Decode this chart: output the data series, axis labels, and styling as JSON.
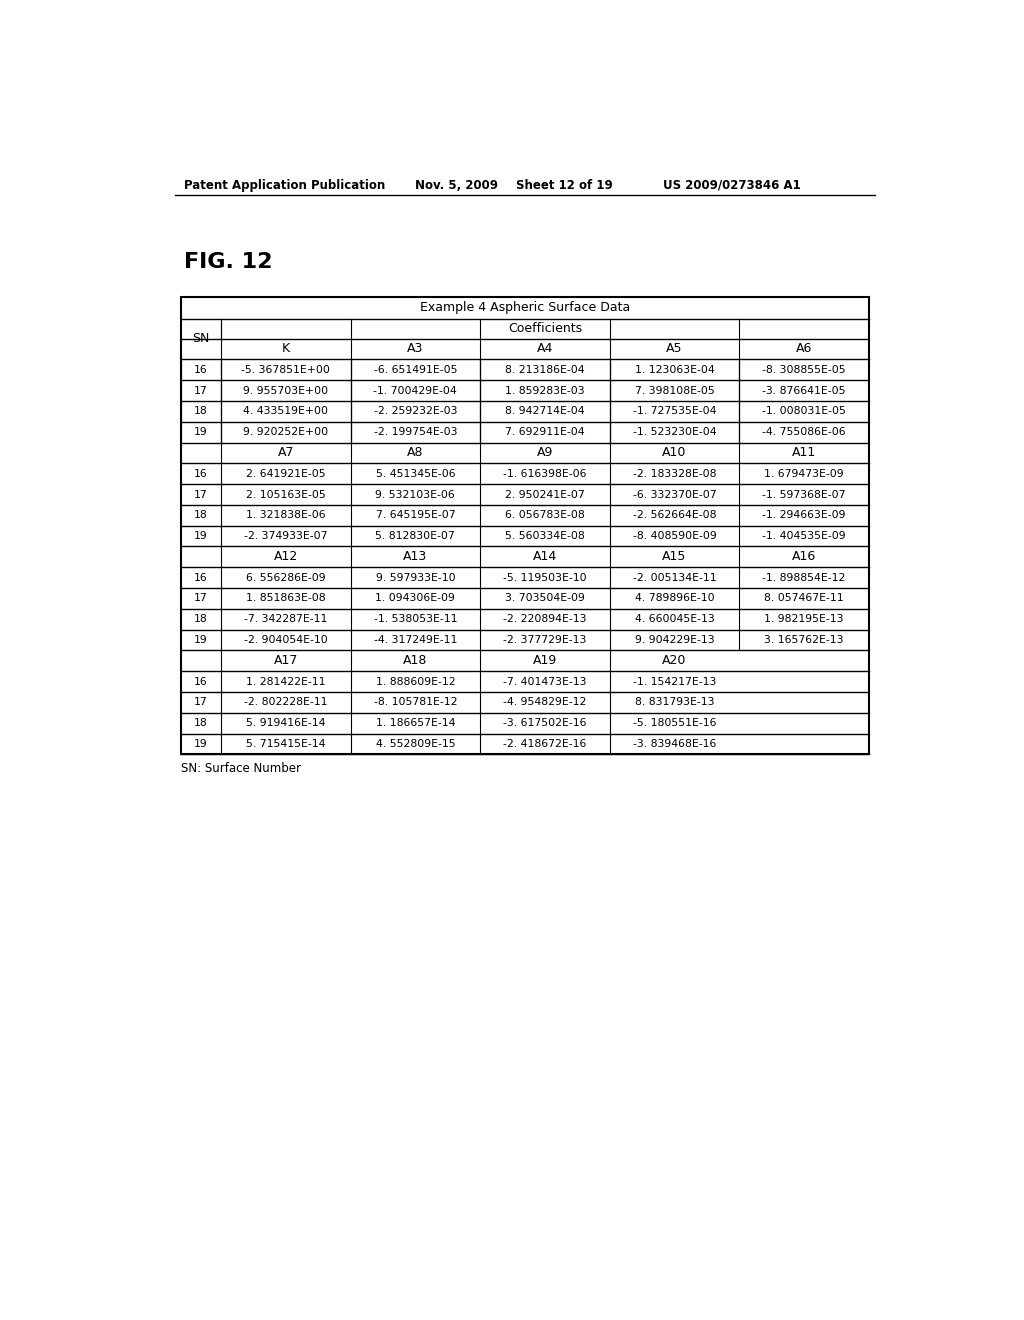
{
  "header_text": "Patent Application Publication",
  "date_text": "Nov. 5, 2009",
  "sheet_text": "Sheet 12 of 19",
  "patent_text": "US 2009/0273846 A1",
  "fig_label": "FIG. 12",
  "table_title": "Example 4 Aspheric Surface Data",
  "footnote": "SN: Surface Number",
  "sections": [
    {
      "col_header": [
        "SN",
        "K",
        "A3",
        "A4",
        "A5",
        "A6"
      ],
      "rows": [
        [
          "16",
          "-5. 367851E+00",
          "-6. 651491E-05",
          "8. 213186E-04",
          "1. 123063E-04",
          "-8. 308855E-05"
        ],
        [
          "17",
          "9. 955703E+00",
          "-1. 700429E-04",
          "1. 859283E-03",
          "7. 398108E-05",
          "-3. 876641E-05"
        ],
        [
          "18",
          "4. 433519E+00",
          "-2. 259232E-03",
          "8. 942714E-04",
          "-1. 727535E-04",
          "-1. 008031E-05"
        ],
        [
          "19",
          "9. 920252E+00",
          "-2. 199754E-03",
          "7. 692911E-04",
          "-1. 523230E-04",
          "-4. 755086E-06"
        ]
      ]
    },
    {
      "col_header": [
        "",
        "A7",
        "A8",
        "A9",
        "A10",
        "A11"
      ],
      "rows": [
        [
          "16",
          "2. 641921E-05",
          "5. 451345E-06",
          "-1. 616398E-06",
          "-2. 183328E-08",
          "1. 679473E-09"
        ],
        [
          "17",
          "2. 105163E-05",
          "9. 532103E-06",
          "2. 950241E-07",
          "-6. 332370E-07",
          "-1. 597368E-07"
        ],
        [
          "18",
          "1. 321838E-06",
          "7. 645195E-07",
          "6. 056783E-08",
          "-2. 562664E-08",
          "-1. 294663E-09"
        ],
        [
          "19",
          "-2. 374933E-07",
          "5. 812830E-07",
          "5. 560334E-08",
          "-8. 408590E-09",
          "-1. 404535E-09"
        ]
      ]
    },
    {
      "col_header": [
        "",
        "A12",
        "A13",
        "A14",
        "A15",
        "A16"
      ],
      "rows": [
        [
          "16",
          "6. 556286E-09",
          "9. 597933E-10",
          "-5. 119503E-10",
          "-2. 005134E-11",
          "-1. 898854E-12"
        ],
        [
          "17",
          "1. 851863E-08",
          "1. 094306E-09",
          "3. 703504E-09",
          "4. 789896E-10",
          "8. 057467E-11"
        ],
        [
          "18",
          "-7. 342287E-11",
          "-1. 538053E-11",
          "-2. 220894E-13",
          "4. 660045E-13",
          "1. 982195E-13"
        ],
        [
          "19",
          "-2. 904054E-10",
          "-4. 317249E-11",
          "-2. 377729E-13",
          "9. 904229E-13",
          "3. 165762E-13"
        ]
      ]
    },
    {
      "col_header": [
        "",
        "A17",
        "A18",
        "A19",
        "A20"
      ],
      "rows": [
        [
          "16",
          "1. 281422E-11",
          "1. 888609E-12",
          "-7. 401473E-13",
          "-1. 154217E-13"
        ],
        [
          "17",
          "-2. 802228E-11",
          "-8. 105781E-12",
          "-4. 954829E-12",
          "8. 831793E-13"
        ],
        [
          "18",
          "5. 919416E-14",
          "1. 186657E-14",
          "-3. 617502E-16",
          "-5. 180551E-16"
        ],
        [
          "19",
          "5. 715415E-14",
          "4. 552809E-15",
          "-2. 418672E-16",
          "-3. 839468E-16"
        ]
      ]
    }
  ]
}
